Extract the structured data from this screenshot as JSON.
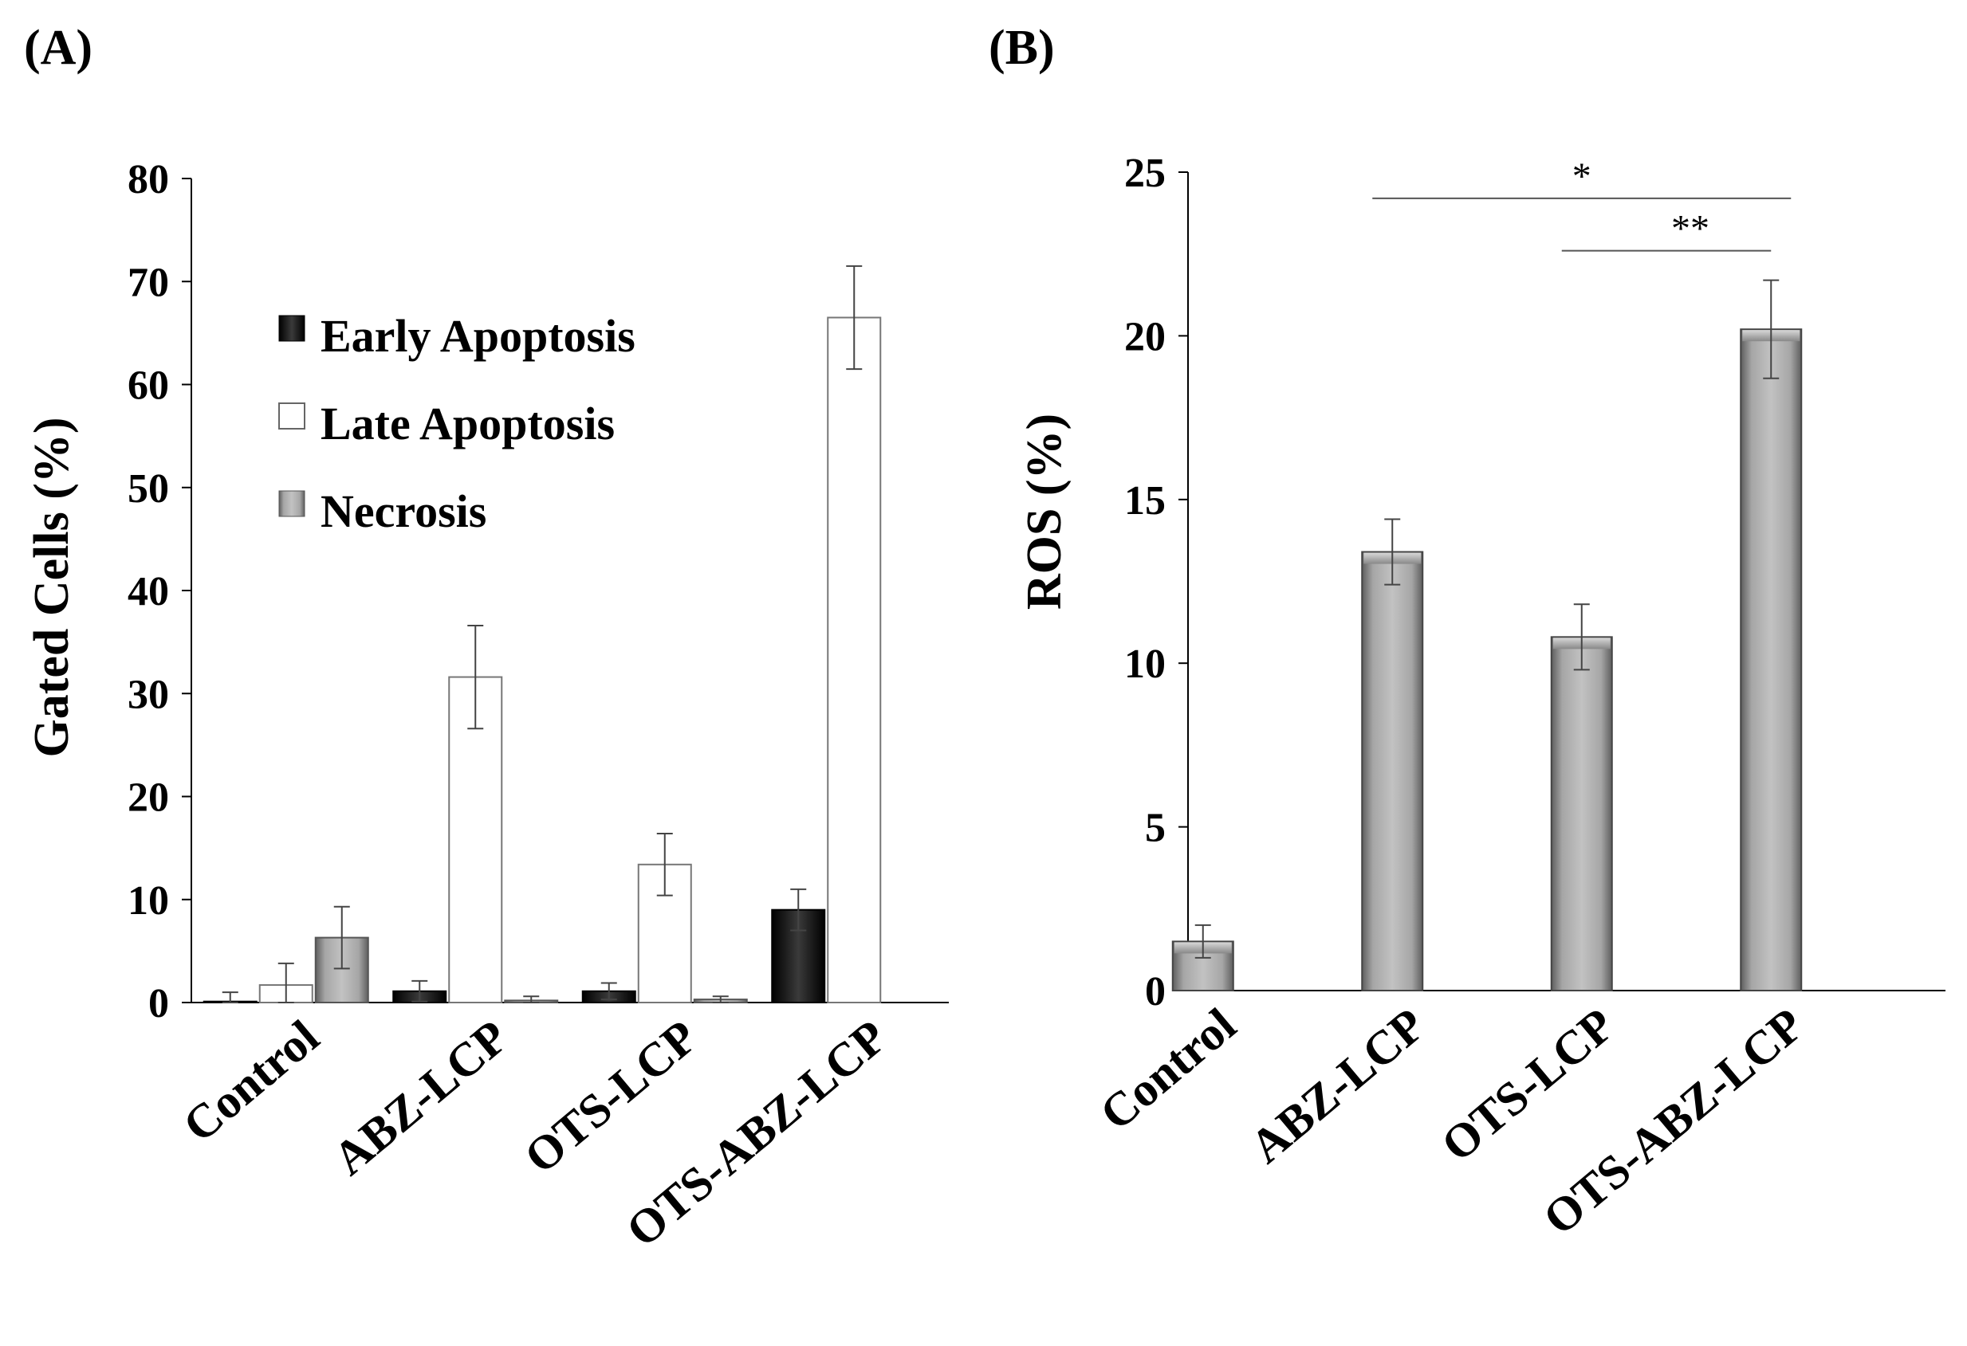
{
  "chart_data": [
    {
      "type": "bar",
      "panel_label": "(A)",
      "ylabel": "Gated Cells (%)",
      "xlabel": "",
      "ylim": [
        0,
        80
      ],
      "yticks": [
        0,
        10,
        20,
        30,
        40,
        50,
        60,
        70,
        80
      ],
      "categories": [
        "Control",
        "ABZ-LCP",
        "OTS-LCP",
        "OTS-ABZ-LCP"
      ],
      "legend_position": "top-left",
      "series": [
        {
          "name": "Early Apoptosis",
          "values": [
            0.1,
            1.1,
            1.1,
            9.0
          ],
          "errors": [
            0.9,
            1.0,
            0.8,
            2.0
          ],
          "color": "#111111"
        },
        {
          "name": "Late Apoptosis",
          "values": [
            1.7,
            31.6,
            13.4,
            66.5
          ],
          "errors": [
            2.1,
            5.0,
            3.0,
            5.0
          ],
          "color": "#ffffff"
        },
        {
          "name": "Necrosis",
          "values": [
            6.3,
            0.2,
            0.3,
            0.0
          ],
          "errors": [
            3.0,
            0.4,
            0.3,
            0.0
          ],
          "color": "#8a8a8a"
        }
      ]
    },
    {
      "type": "bar",
      "panel_label": "(B)",
      "ylabel": "ROS (%)",
      "xlabel": "",
      "ylim": [
        0,
        25
      ],
      "yticks": [
        0,
        5,
        10,
        15,
        20,
        25
      ],
      "categories": [
        "Control",
        "ABZ-LCP",
        "OTS-LCP",
        "OTS-ABZ-LCP"
      ],
      "values": [
        1.5,
        13.4,
        10.8,
        20.2
      ],
      "errors": [
        0.5,
        1.0,
        1.0,
        1.5
      ],
      "color": "#8a8a8a",
      "significance": [
        {
          "from": "ABZ-LCP",
          "to": "OTS-ABZ-LCP",
          "label": "*",
          "level": 24.2
        },
        {
          "from": "OTS-LCP",
          "to": "OTS-ABZ-LCP",
          "label": "**",
          "level": 22.6
        }
      ]
    }
  ]
}
